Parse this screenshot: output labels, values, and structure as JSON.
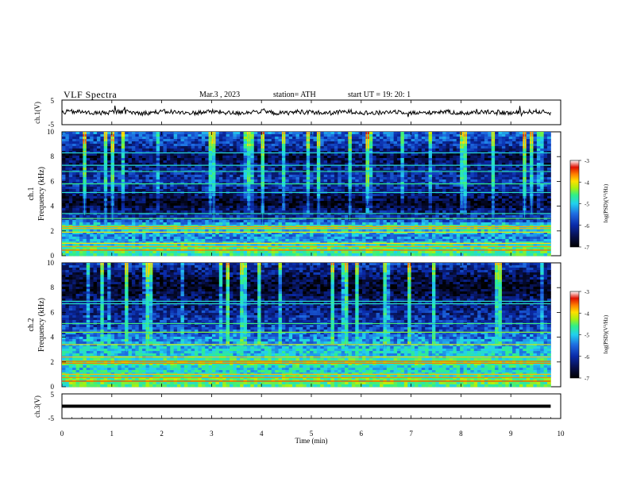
{
  "header": {
    "title": "VLF  Spectra",
    "date": "Mar.3  , 2023",
    "station": "station= ATH",
    "start": "start  UT  =    19: 20: 1"
  },
  "chart_data": [
    {
      "type": "line",
      "panel": "ch1-waveform",
      "ylabel": "ch.1(V)",
      "ylim": [
        -5,
        5
      ],
      "ytick_labels": [
        "5",
        "-5"
      ],
      "xlim": [
        0,
        10
      ],
      "x_end": 9.8,
      "baseline_value": 0,
      "noise_amplitude": 0.9,
      "color": "#000000"
    },
    {
      "type": "heatmap",
      "panel": "ch1-spectrogram",
      "ylabel": "ch.1\nFrequency  (kHz)",
      "ylim": [
        0,
        10
      ],
      "ytick_labels": [
        "0",
        "2",
        "4",
        "6",
        "8",
        "10"
      ],
      "xlim": [
        0,
        10
      ],
      "x_end": 9.8,
      "colorbar": {
        "label": "log(PSD)(V²/Hz)",
        "range": [
          -7,
          -3
        ],
        "tick_labels": [
          "-3",
          "-4",
          "-5",
          "-6",
          "-7"
        ]
      },
      "frequency_profile": [
        {
          "f": 0.0,
          "level": -5.0
        },
        {
          "f": 0.5,
          "level": -4.6
        },
        {
          "f": 1.0,
          "level": -5.2
        },
        {
          "f": 1.5,
          "level": -5.6
        },
        {
          "f": 2.0,
          "level": -5.2
        },
        {
          "f": 2.3,
          "level": -4.8
        },
        {
          "f": 2.8,
          "level": -5.8
        },
        {
          "f": 3.5,
          "level": -6.3
        },
        {
          "f": 4.2,
          "level": -6.8
        },
        {
          "f": 5.0,
          "level": -6.4
        },
        {
          "f": 6.0,
          "level": -6.0
        },
        {
          "f": 7.0,
          "level": -6.3
        },
        {
          "f": 8.0,
          "level": -6.6
        },
        {
          "f": 9.0,
          "level": -6.0
        },
        {
          "f": 10.0,
          "level": -5.7
        }
      ],
      "narrowband_lines_khz": [
        0.45,
        0.75,
        1.0,
        1.9,
        2.2,
        2.35,
        3.0,
        3.4,
        5.1,
        5.8,
        6.8,
        7.3,
        8.3
      ]
    },
    {
      "type": "heatmap",
      "panel": "ch2-spectrogram",
      "ylabel": "ch.2\nFrequency  (kHz)",
      "ylim": [
        0,
        10
      ],
      "ytick_labels": [
        "0",
        "2",
        "4",
        "6",
        "8",
        "10"
      ],
      "xlim": [
        0,
        10
      ],
      "x_end": 9.8,
      "colorbar": {
        "label": "log(PSD)(V²/Hz)",
        "range": [
          -7,
          -3
        ],
        "tick_labels": [
          "-3",
          "-4",
          "-5",
          "-6",
          "-7"
        ]
      },
      "frequency_profile": [
        {
          "f": 0.0,
          "level": -4.8
        },
        {
          "f": 0.5,
          "level": -4.5
        },
        {
          "f": 1.0,
          "level": -5.0
        },
        {
          "f": 1.5,
          "level": -5.2
        },
        {
          "f": 2.0,
          "level": -4.6
        },
        {
          "f": 2.5,
          "level": -5.2
        },
        {
          "f": 3.0,
          "level": -5.2
        },
        {
          "f": 4.0,
          "level": -5.6
        },
        {
          "f": 5.0,
          "level": -6.0
        },
        {
          "f": 6.0,
          "level": -6.2
        },
        {
          "f": 7.0,
          "level": -6.4
        },
        {
          "f": 8.0,
          "level": -6.8
        },
        {
          "f": 9.0,
          "level": -6.5
        },
        {
          "f": 10.0,
          "level": -6.0
        }
      ],
      "narrowband_lines_khz": [
        0.45,
        0.75,
        1.0,
        1.9,
        2.05,
        2.4,
        3.4,
        4.4,
        5.1,
        6.7,
        6.9
      ]
    },
    {
      "type": "line",
      "panel": "ch3-waveform",
      "ylabel": "ch.3(V)",
      "ylim": [
        -5,
        5
      ],
      "ytick_labels": [
        "5",
        "-5"
      ],
      "xlim": [
        0,
        10
      ],
      "x_end": 9.8,
      "baseline_value": 0,
      "noise_amplitude": 0.0,
      "color": "#000000"
    }
  ],
  "xaxis": {
    "label": "Time  (min)",
    "ticks": [
      0,
      1,
      2,
      3,
      4,
      5,
      6,
      7,
      8,
      9,
      10
    ],
    "tick_labels": [
      "0",
      "1",
      "2",
      "3",
      "4",
      "5",
      "6",
      "7",
      "8",
      "9",
      "10"
    ]
  },
  "colormap": [
    "#000000",
    "#08104a",
    "#0a2aa8",
    "#1e6ae0",
    "#22d0f0",
    "#30f088",
    "#a8f010",
    "#ffe000",
    "#ff8000",
    "#e01000",
    "#ffffff"
  ]
}
